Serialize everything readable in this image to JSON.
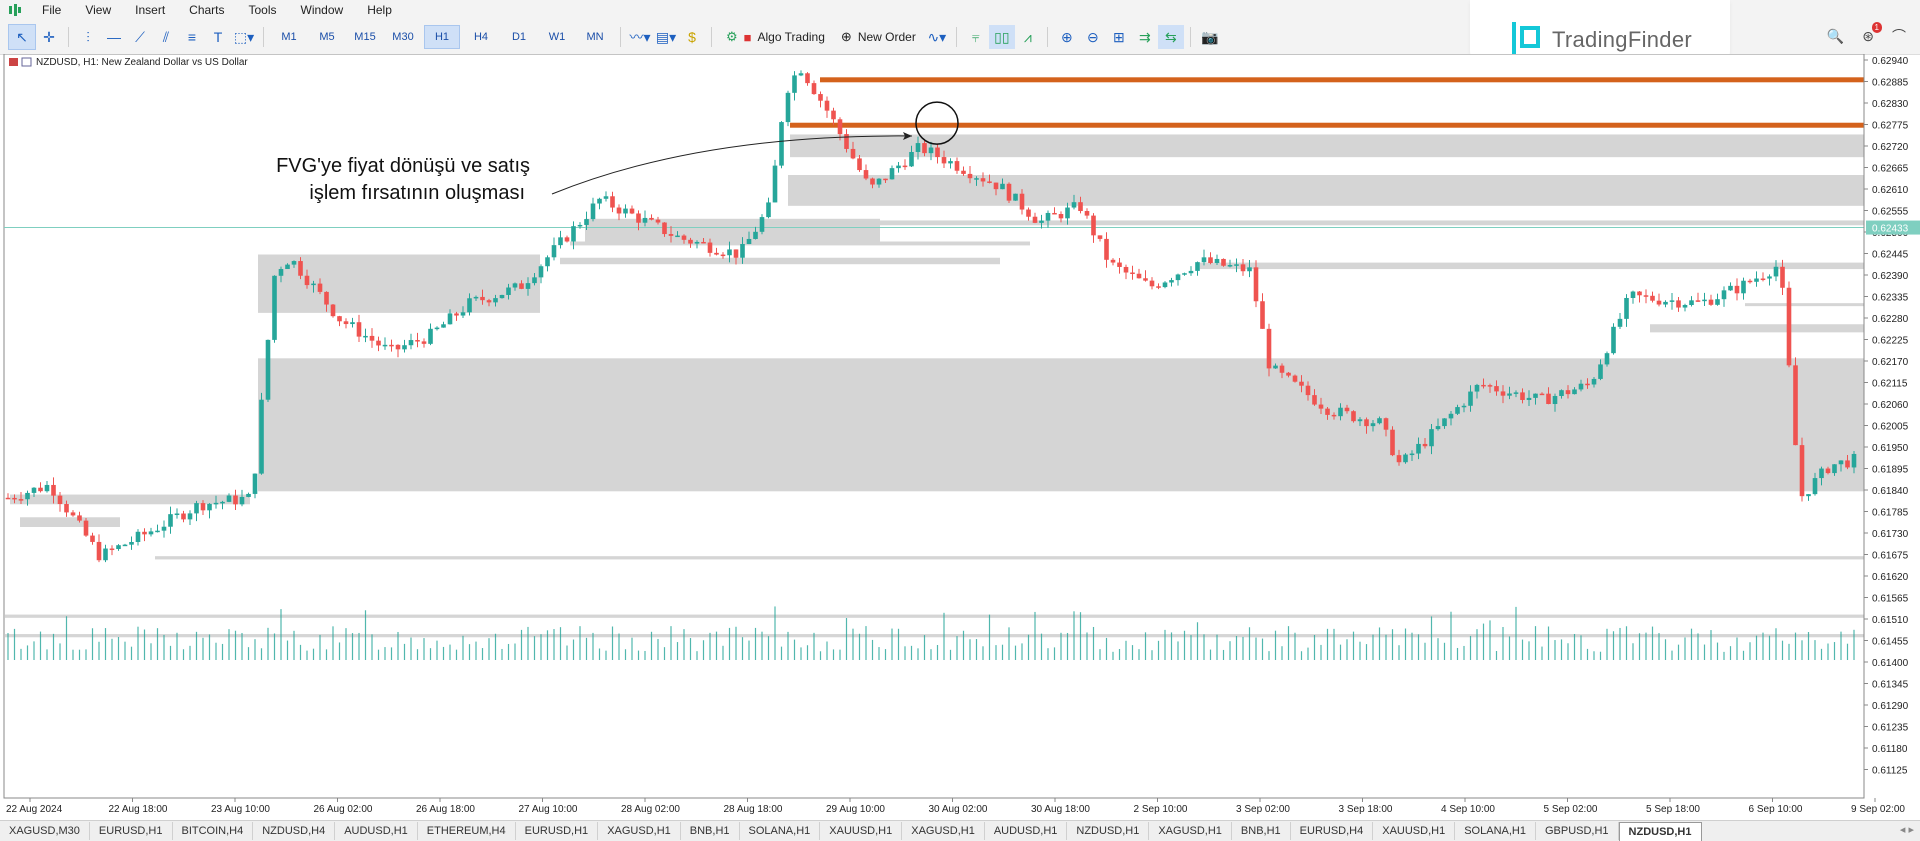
{
  "menu": {
    "items": [
      "File",
      "View",
      "Insert",
      "Charts",
      "Tools",
      "Window",
      "Help"
    ]
  },
  "toolbar": {
    "timeframes": [
      "M1",
      "M5",
      "M15",
      "M30",
      "H1",
      "H4",
      "D1",
      "W1",
      "MN"
    ],
    "active_timeframe": "H1",
    "algo_trading": "Algo Trading",
    "new_order": "New Order"
  },
  "brand": {
    "name": "TradingFinder"
  },
  "notification_count": "1",
  "chart": {
    "title": "NZDUSD, H1:  New Zealand Dollar vs US Dollar",
    "annotation_line1": "FVG'ye fiyat dönüşü ve satış",
    "annotation_line2": "işlem fırsatının oluşması",
    "current_price": "0.62433",
    "price_labels": [
      "0.62940",
      "0.62885",
      "0.62830",
      "0.62775",
      "0.62720",
      "0.62665",
      "0.62610",
      "0.62555",
      "0.62500",
      "0.62445",
      "0.62390",
      "0.62335",
      "0.62280",
      "0.62225",
      "0.62170",
      "0.62115",
      "0.62060",
      "0.62005",
      "0.61950",
      "0.61895",
      "0.61840",
      "0.61785",
      "0.61730",
      "0.61675",
      "0.61620",
      "0.61565",
      "0.61510",
      "0.61455",
      "0.61400",
      "0.61345",
      "0.61290",
      "0.61235",
      "0.61180",
      "0.61125"
    ],
    "time_labels": [
      "22 Aug 2024",
      "22 Aug 18:00",
      "23 Aug 10:00",
      "26 Aug 02:00",
      "26 Aug 18:00",
      "27 Aug 10:00",
      "28 Aug 02:00",
      "28 Aug 18:00",
      "29 Aug 10:00",
      "30 Aug 02:00",
      "30 Aug 18:00",
      "2 Sep 10:00",
      "3 Sep 02:00",
      "3 Sep 18:00",
      "4 Sep 10:00",
      "5 Sep 02:00",
      "5 Sep 18:00",
      "6 Sep 10:00",
      "9 Sep 02:00"
    ],
    "colors": {
      "bull": "#26a69a",
      "bear": "#ef5350",
      "zone": "#d3d3d3",
      "resistance": "#d4621c",
      "price_line": "#7fcfc0"
    }
  },
  "tabs": {
    "items": [
      "XAGUSD,M30",
      "EURUSD,H1",
      "BITCOIN,H4",
      "NZDUSD,H4",
      "AUDUSD,H1",
      "ETHEREUM,H4",
      "EURUSD,H1",
      "XAGUSD,H1",
      "BNB,H1",
      "SOLANA,H1",
      "XAUUSD,H1",
      "XAGUSD,H1",
      "AUDUSD,H1",
      "NZDUSD,H1",
      "XAGUSD,H1",
      "BNB,H1",
      "EURUSD,H4",
      "XAUUSD,H1",
      "SOLANA,H1",
      "GBPUSD,H1",
      "NZDUSD,H1"
    ],
    "active_index": 20
  }
}
